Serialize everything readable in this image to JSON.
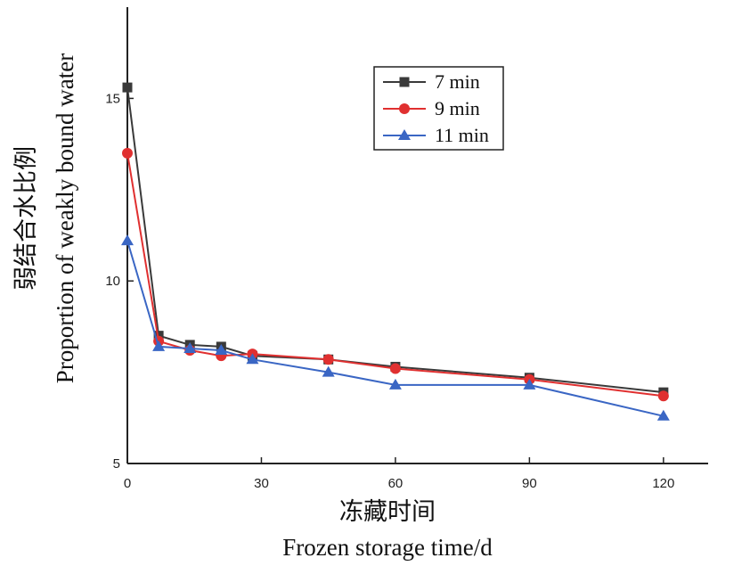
{
  "chart_data": {
    "type": "line",
    "xlabel_cn": "冻藏时间",
    "xlabel_en": "Frozen storage time/d",
    "ylabel_cn": "弱结合水比例",
    "ylabel_en": "Proportion of weakly bound water",
    "xlim": [
      0,
      130
    ],
    "ylim": [
      5,
      17.5
    ],
    "x_ticks": [
      0,
      30,
      60,
      90,
      120
    ],
    "y_ticks": [
      5,
      10,
      15
    ],
    "legend_position": "top-center",
    "grid": false,
    "x": [
      0,
      7,
      14,
      21,
      28,
      45,
      60,
      90,
      120
    ],
    "series": [
      {
        "name": "7 min",
        "color": "#3a3a3a",
        "marker": "square",
        "values": [
          15.3,
          8.5,
          8.25,
          8.2,
          7.95,
          7.85,
          7.65,
          7.35,
          6.95
        ]
      },
      {
        "name": "9 min",
        "color": "#e03030",
        "marker": "circle",
        "values": [
          13.5,
          8.35,
          8.1,
          7.95,
          8.0,
          7.85,
          7.6,
          7.3,
          6.85
        ]
      },
      {
        "name": "11 min",
        "color": "#3a66c4",
        "marker": "triangle",
        "values": [
          11.1,
          8.2,
          8.15,
          8.1,
          7.85,
          7.5,
          7.15,
          7.15,
          6.3
        ]
      }
    ]
  }
}
